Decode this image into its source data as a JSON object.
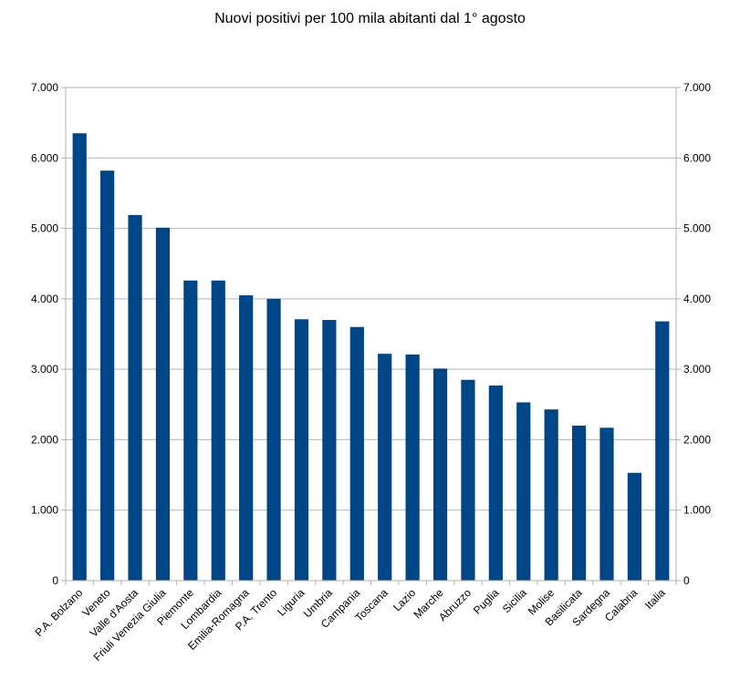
{
  "chart_data": {
    "type": "bar",
    "title": "Nuovi positivi per 100 mila abitanti dal 1° agosto",
    "xlabel": "",
    "ylabel": "",
    "ylim": [
      0,
      7000
    ],
    "yticks": [
      0,
      1000,
      2000,
      3000,
      4000,
      5000,
      6000,
      7000
    ],
    "ytick_labels": [
      "0",
      "1.000",
      "2.000",
      "3.000",
      "4.000",
      "5.000",
      "6.000",
      "7.000"
    ],
    "grid": true,
    "secondary_y_axis": true,
    "legend": "none",
    "bar_color": "#004586",
    "categories": [
      "P.A. Bolzano",
      "Veneto",
      "Valle d'Aosta",
      "Friuli Venezia Giulia",
      "Piemonte",
      "Lombardia",
      "Emilia-Romagna",
      "P.A. Trento",
      "Liguria",
      "Umbria",
      "Campania",
      "Toscana",
      "Lazio",
      "Marche",
      "Abruzzo",
      "Puglia",
      "Sicilia",
      "Molise",
      "Basilicata",
      "Sardegna",
      "Calabria",
      "Italia"
    ],
    "values": [
      6350,
      5820,
      5190,
      5010,
      4260,
      4260,
      4050,
      4000,
      3710,
      3700,
      3600,
      3220,
      3210,
      3010,
      2850,
      2770,
      2530,
      2430,
      2200,
      2170,
      1530,
      3680
    ]
  }
}
